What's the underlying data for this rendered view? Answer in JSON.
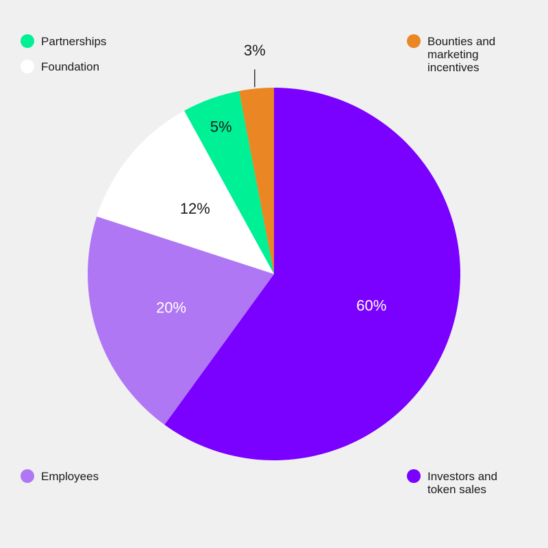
{
  "chart_data": {
    "type": "pie",
    "start_angle_deg": 0,
    "direction": "clockwise",
    "slices": [
      {
        "name": "Investors and token sales",
        "value": 60,
        "label": "60%",
        "color": "#7a00ff",
        "label_color": "#ffffff"
      },
      {
        "name": "Employees",
        "value": 20,
        "label": "20%",
        "color": "#b077f5",
        "label_color": "#ffffff"
      },
      {
        "name": "Foundation",
        "value": 12,
        "label": "12%",
        "color": "#ffffff",
        "label_color": "#1a1a1a"
      },
      {
        "name": "Partnerships",
        "value": 5,
        "label": "5%",
        "color": "#00f095",
        "label_color": "#1a1a1a"
      },
      {
        "name": "Bounties and marketing incentives",
        "value": 3,
        "label": "3%",
        "color": "#ea8624",
        "label_color": "#1a1a1a"
      }
    ]
  },
  "legend": {
    "partnerships": {
      "label": "Partnerships",
      "color": "#00f095"
    },
    "foundation": {
      "label": "Foundation",
      "color": "#ffffff"
    },
    "bounties": {
      "label": "Bounties and\nmarketing\nincentives",
      "color": "#ea8624"
    },
    "employees": {
      "label": "Employees",
      "color": "#b077f5"
    },
    "investors": {
      "label": "Investors and\ntoken sales",
      "color": "#7a00ff"
    }
  }
}
